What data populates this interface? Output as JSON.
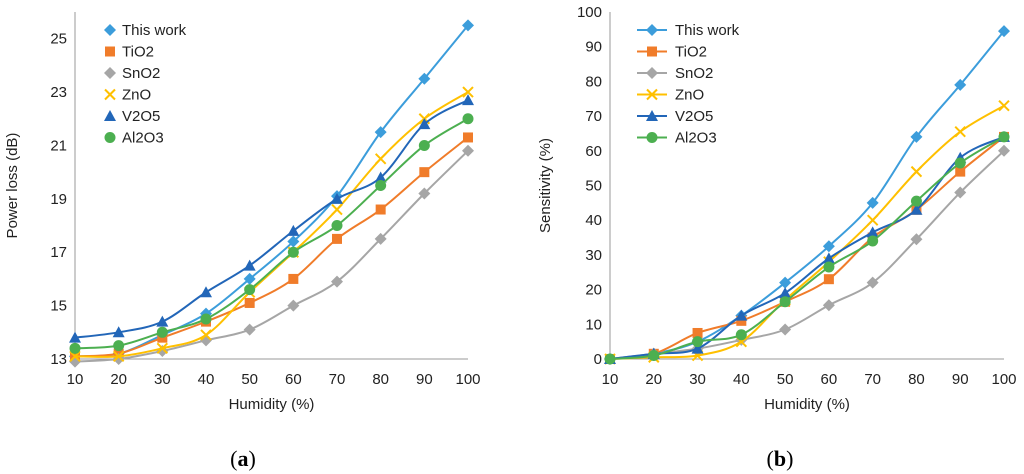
{
  "chart_data": [
    {
      "type": "line",
      "panel_label": "a",
      "title": "",
      "xlabel": "Humidity (%)",
      "ylabel": "Power loss (dB)",
      "x": [
        10,
        20,
        30,
        40,
        50,
        60,
        70,
        80,
        90,
        100
      ],
      "xlim": [
        10,
        100
      ],
      "ylim": [
        13,
        26
      ],
      "yticks": [
        13,
        15,
        17,
        19,
        21,
        23,
        25
      ],
      "series": [
        {
          "name": "This work",
          "color": "#3C9DDB",
          "marker": "diamond",
          "values": [
            13.1,
            13.2,
            13.9,
            14.7,
            16.0,
            17.4,
            19.1,
            21.5,
            23.5,
            25.5
          ]
        },
        {
          "name": "TiO2",
          "color": "#F07C2A",
          "marker": "square",
          "values": [
            13.1,
            13.2,
            13.8,
            14.4,
            15.1,
            16.0,
            17.5,
            18.6,
            20.0,
            21.3
          ]
        },
        {
          "name": "SnO2",
          "color": "#A6A6A6",
          "marker": "diamond",
          "values": [
            12.9,
            13.0,
            13.3,
            13.7,
            14.1,
            15.0,
            15.9,
            17.5,
            19.2,
            20.8
          ]
        },
        {
          "name": "ZnO",
          "color": "#FFC000",
          "marker": "x",
          "values": [
            13.1,
            13.1,
            13.4,
            13.9,
            15.5,
            17.0,
            18.6,
            20.5,
            22.0,
            23.0
          ]
        },
        {
          "name": "V2O5",
          "color": "#2266B8",
          "marker": "triangle",
          "values": [
            13.8,
            14.0,
            14.4,
            15.5,
            16.5,
            17.8,
            19.0,
            19.8,
            21.8,
            22.7
          ]
        },
        {
          "name": "Al2O3",
          "color": "#4CAF50",
          "marker": "circle",
          "values": [
            13.4,
            13.5,
            14.0,
            14.5,
            15.6,
            17.0,
            18.0,
            19.5,
            21.0,
            22.0
          ]
        }
      ]
    },
    {
      "type": "line",
      "panel_label": "b",
      "title": "",
      "xlabel": "Humidity (%)",
      "ylabel": "Sensitivity (%)",
      "x": [
        10,
        20,
        30,
        40,
        50,
        60,
        70,
        80,
        90,
        100
      ],
      "xlim": [
        10,
        100
      ],
      "ylim": [
        0,
        100
      ],
      "yticks": [
        0,
        10,
        20,
        30,
        40,
        50,
        60,
        70,
        80,
        90,
        100
      ],
      "series": [
        {
          "name": "This work",
          "color": "#3C9DDB",
          "marker": "diamond",
          "values": [
            0,
            1.5,
            5.0,
            12.5,
            22.0,
            32.5,
            45.0,
            64.0,
            79.0,
            94.5
          ]
        },
        {
          "name": "TiO2",
          "color": "#F07C2A",
          "marker": "square",
          "values": [
            0,
            1.5,
            7.5,
            11.0,
            16.5,
            23.0,
            35.0,
            43.0,
            54.0,
            64.0
          ]
        },
        {
          "name": "SnO2",
          "color": "#A6A6A6",
          "marker": "diamond",
          "values": [
            0,
            1.5,
            3.0,
            5.5,
            8.5,
            15.5,
            22.0,
            34.5,
            48.0,
            60.0
          ]
        },
        {
          "name": "ZnO",
          "color": "#FFC000",
          "marker": "x",
          "values": [
            0,
            0.5,
            1.0,
            5.0,
            17.0,
            28.0,
            40.0,
            54.0,
            65.5,
            73.0
          ]
        },
        {
          "name": "V2O5",
          "color": "#2266B8",
          "marker": "triangle",
          "values": [
            0,
            1.5,
            3.0,
            12.5,
            19.0,
            29.0,
            36.5,
            43.0,
            58.0,
            64.0
          ]
        },
        {
          "name": "Al2O3",
          "color": "#4CAF50",
          "marker": "circle",
          "values": [
            0,
            1.0,
            5.0,
            7.0,
            16.5,
            26.5,
            34.0,
            45.5,
            56.5,
            64.0
          ]
        }
      ]
    }
  ]
}
